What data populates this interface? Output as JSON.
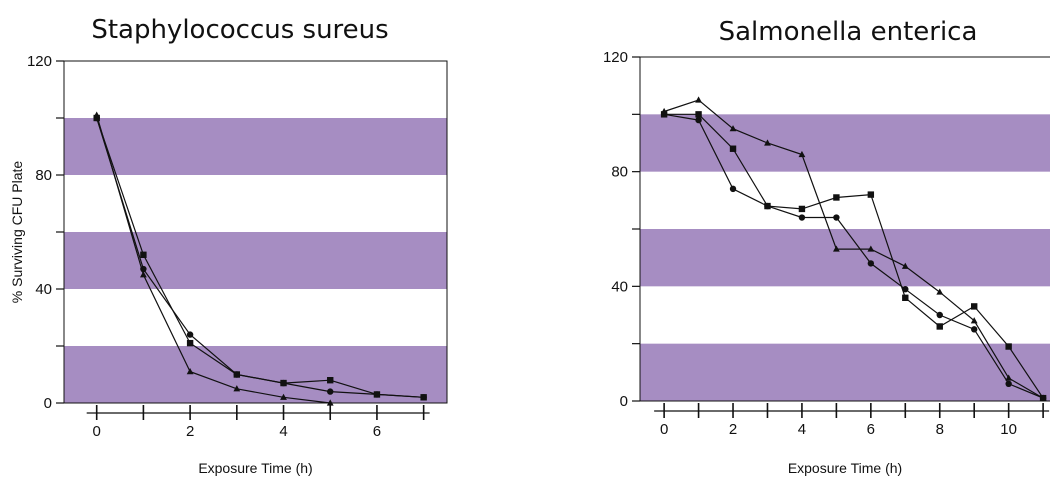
{
  "chart_data": [
    {
      "type": "line",
      "title": "Staphylococcus sureus",
      "xlabel": "Exposure Time (h)",
      "ylabel": "% Surviving CFU Plate",
      "xlim": [
        -0.7,
        7.5
      ],
      "ylim": [
        0,
        120
      ],
      "xticks": [
        0,
        1,
        2,
        3,
        4,
        5,
        6,
        7
      ],
      "xtick_labels": [
        "0",
        "",
        "2",
        "",
        "4",
        "",
        "6",
        ""
      ],
      "yticks": [
        0,
        20,
        40,
        60,
        80,
        100,
        120
      ],
      "ytick_labels": [
        "0",
        "",
        "40",
        "",
        "80",
        "",
        "120"
      ],
      "bands": [
        [
          0,
          20
        ],
        [
          40,
          60
        ],
        [
          80,
          100
        ]
      ],
      "band_color": "#a68dc2",
      "series": [
        {
          "marker": "square",
          "x": [
            0,
            1,
            2,
            3,
            4,
            5,
            6,
            7
          ],
          "values": [
            100,
            52,
            21,
            10,
            7,
            8,
            3,
            2
          ]
        },
        {
          "marker": "circle",
          "x": [
            0,
            1,
            2,
            3,
            4,
            5,
            6,
            7
          ],
          "values": [
            100,
            47,
            24,
            10,
            7,
            4,
            3,
            2
          ]
        },
        {
          "marker": "triangle",
          "x": [
            0,
            1,
            2,
            3,
            4,
            5
          ],
          "values": [
            101,
            45,
            11,
            5,
            2,
            0
          ]
        }
      ]
    },
    {
      "type": "line",
      "title": "Salmonella enterica",
      "xlabel": "Exposure Time (h)",
      "ylabel": "",
      "xlim": [
        -0.7,
        11.2
      ],
      "ylim": [
        0,
        120
      ],
      "xticks": [
        0,
        1,
        2,
        3,
        4,
        5,
        6,
        7,
        8,
        9,
        10,
        11
      ],
      "xtick_labels": [
        "0",
        "",
        "2",
        "",
        "4",
        "",
        "6",
        "",
        "8",
        "",
        "10",
        ""
      ],
      "yticks": [
        0,
        20,
        40,
        60,
        80,
        100,
        120
      ],
      "ytick_labels": [
        "0",
        "",
        "40",
        "",
        "80",
        "",
        "120"
      ],
      "bands": [
        [
          0,
          20
        ],
        [
          40,
          60
        ],
        [
          80,
          100
        ]
      ],
      "band_color": "#a68dc2",
      "series": [
        {
          "marker": "square",
          "x": [
            0,
            1,
            2,
            3,
            4,
            5,
            6,
            7,
            8,
            9,
            10,
            11
          ],
          "values": [
            100,
            100,
            88,
            68,
            67,
            71,
            72,
            36,
            26,
            33,
            19,
            1
          ]
        },
        {
          "marker": "circle",
          "x": [
            0,
            1,
            2,
            3,
            4,
            5,
            6,
            7,
            8,
            9,
            10,
            11
          ],
          "values": [
            100,
            98,
            74,
            68,
            64,
            64,
            48,
            39,
            30,
            25,
            6,
            1
          ]
        },
        {
          "marker": "triangle",
          "x": [
            0,
            1,
            2,
            3,
            4,
            5,
            6,
            7,
            8,
            9,
            10,
            11
          ],
          "values": [
            101,
            105,
            95,
            90,
            86,
            53,
            53,
            47,
            38,
            28,
            8,
            1
          ]
        }
      ]
    }
  ]
}
